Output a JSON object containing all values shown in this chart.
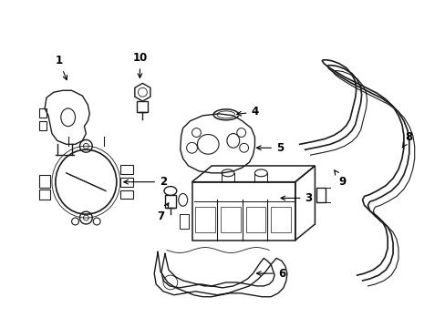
{
  "bg_color": "#ffffff",
  "line_color": "#1a1a1a",
  "lw": 1.0,
  "fig_w": 4.89,
  "fig_h": 3.6,
  "dpi": 100
}
